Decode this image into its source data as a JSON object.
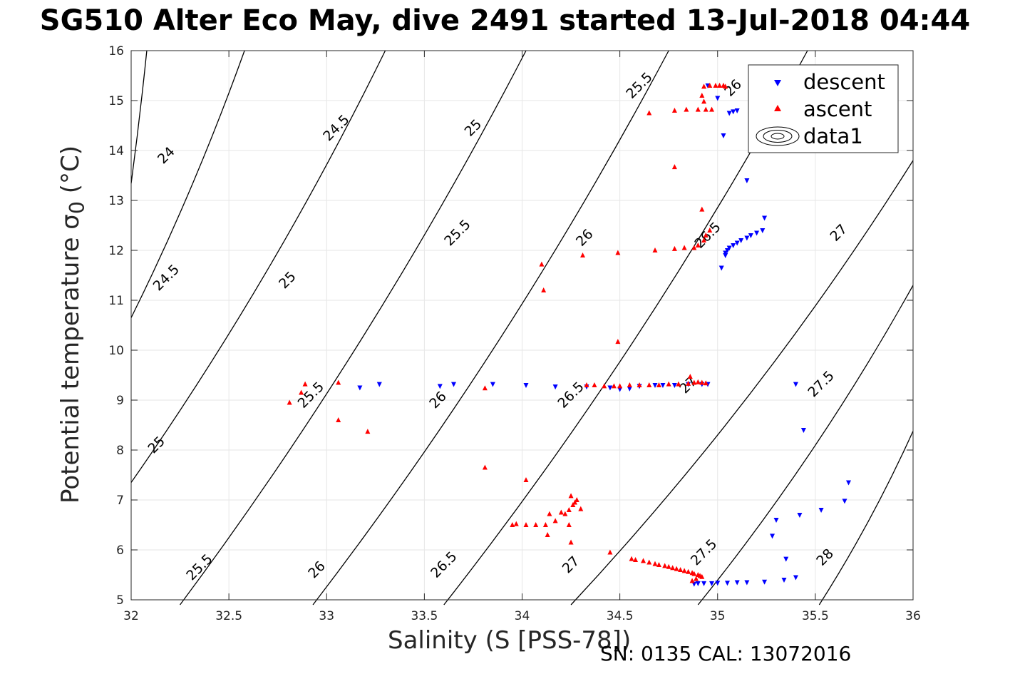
{
  "title": "SG510 Alter Eco May, dive 2491 started 13-Jul-2018 04:44",
  "footer": "SN: 0135  CAL: 13072016",
  "colors": {
    "descent": "#0000ff",
    "ascent": "#ff0000",
    "contour": "#000000",
    "grid": "#e6e6e6"
  },
  "chart_data": {
    "type": "scatter",
    "title": "SG510 Alter Eco May, dive 2491 started 13-Jul-2018 04:44",
    "xlabel": "Salinity (S [PSS-78])",
    "ylabel": "Potential temperature σ",
    "ylabel_sub": "0",
    "ylabel_unit": " (°C)",
    "xlim": [
      32,
      36
    ],
    "ylim": [
      5,
      16
    ],
    "xticks": [
      32,
      32.5,
      33,
      33.5,
      34,
      34.5,
      35,
      35.5,
      36
    ],
    "xticklabels": [
      "32",
      "32.5",
      "33",
      "33.5",
      "34",
      "34.5",
      "35",
      "35.5",
      "36"
    ],
    "yticks": [
      5,
      6,
      7,
      8,
      9,
      10,
      11,
      12,
      13,
      14,
      15,
      16
    ],
    "yticklabels": [
      "5",
      "6",
      "7",
      "8",
      "9",
      "10",
      "11",
      "12",
      "13",
      "14",
      "15",
      "16"
    ],
    "grid": true,
    "legend_position": "top-right",
    "legend": [
      "descent",
      "ascent",
      "data1"
    ],
    "series": [
      {
        "name": "descent",
        "marker": "triangle-down",
        "color": "#0000ff",
        "points": [
          [
            34.95,
            15.3
          ],
          [
            35.0,
            15.05
          ],
          [
            35.06,
            14.75
          ],
          [
            35.08,
            14.78
          ],
          [
            35.1,
            14.8
          ],
          [
            35.03,
            14.3
          ],
          [
            35.15,
            13.4
          ],
          [
            35.24,
            12.65
          ],
          [
            35.23,
            12.4
          ],
          [
            35.2,
            12.35
          ],
          [
            35.17,
            12.3
          ],
          [
            35.15,
            12.25
          ],
          [
            35.12,
            12.2
          ],
          [
            35.1,
            12.15
          ],
          [
            35.08,
            12.1
          ],
          [
            35.06,
            12.05
          ],
          [
            35.05,
            12.0
          ],
          [
            35.04,
            11.95
          ],
          [
            35.04,
            11.9
          ],
          [
            35.02,
            11.65
          ],
          [
            33.17,
            9.25
          ],
          [
            33.27,
            9.32
          ],
          [
            33.58,
            9.28
          ],
          [
            33.65,
            9.32
          ],
          [
            33.85,
            9.32
          ],
          [
            34.02,
            9.3
          ],
          [
            34.17,
            9.27
          ],
          [
            34.33,
            9.27
          ],
          [
            34.45,
            9.25
          ],
          [
            34.5,
            9.22
          ],
          [
            34.55,
            9.23
          ],
          [
            34.6,
            9.28
          ],
          [
            34.68,
            9.3
          ],
          [
            34.72,
            9.3
          ],
          [
            34.78,
            9.3
          ],
          [
            34.85,
            9.32
          ],
          [
            34.92,
            9.32
          ],
          [
            34.95,
            9.32
          ],
          [
            35.4,
            9.32
          ],
          [
            35.44,
            8.4
          ],
          [
            35.67,
            7.35
          ],
          [
            35.65,
            6.98
          ],
          [
            35.53,
            6.8
          ],
          [
            35.42,
            6.7
          ],
          [
            35.3,
            6.6
          ],
          [
            35.28,
            6.28
          ],
          [
            35.35,
            5.82
          ],
          [
            35.4,
            5.45
          ],
          [
            35.34,
            5.4
          ],
          [
            35.24,
            5.36
          ],
          [
            35.15,
            5.35
          ],
          [
            35.1,
            5.35
          ],
          [
            35.05,
            5.34
          ],
          [
            35.0,
            5.34
          ],
          [
            34.97,
            5.33
          ],
          [
            34.93,
            5.33
          ],
          [
            34.9,
            5.33
          ],
          [
            34.88,
            5.32
          ]
        ]
      },
      {
        "name": "ascent",
        "marker": "triangle-up",
        "color": "#ff0000",
        "points": [
          [
            34.93,
            15.28
          ],
          [
            34.96,
            15.3
          ],
          [
            34.99,
            15.3
          ],
          [
            35.01,
            15.3
          ],
          [
            35.03,
            15.3
          ],
          [
            35.04,
            15.28
          ],
          [
            34.92,
            15.1
          ],
          [
            34.93,
            14.98
          ],
          [
            34.9,
            14.82
          ],
          [
            34.94,
            14.82
          ],
          [
            34.97,
            14.82
          ],
          [
            34.84,
            14.82
          ],
          [
            34.78,
            14.8
          ],
          [
            34.65,
            14.75
          ],
          [
            34.78,
            13.67
          ],
          [
            34.92,
            12.82
          ],
          [
            34.96,
            12.4
          ],
          [
            34.94,
            12.3
          ],
          [
            34.93,
            12.2
          ],
          [
            34.9,
            12.1
          ],
          [
            34.88,
            12.05
          ],
          [
            34.83,
            12.05
          ],
          [
            34.78,
            12.03
          ],
          [
            34.68,
            12.0
          ],
          [
            34.49,
            11.95
          ],
          [
            34.31,
            11.9
          ],
          [
            34.1,
            11.72
          ],
          [
            34.11,
            11.2
          ],
          [
            34.49,
            10.17
          ],
          [
            32.81,
            8.95
          ],
          [
            32.87,
            9.15
          ],
          [
            32.89,
            9.32
          ],
          [
            33.06,
            9.35
          ],
          [
            33.06,
            8.6
          ],
          [
            33.21,
            8.37
          ],
          [
            33.81,
            9.24
          ],
          [
            34.33,
            9.3
          ],
          [
            34.37,
            9.3
          ],
          [
            34.42,
            9.28
          ],
          [
            34.47,
            9.28
          ],
          [
            34.5,
            9.28
          ],
          [
            34.55,
            9.3
          ],
          [
            34.6,
            9.3
          ],
          [
            34.65,
            9.3
          ],
          [
            34.7,
            9.3
          ],
          [
            34.75,
            9.32
          ],
          [
            34.8,
            9.32
          ],
          [
            34.85,
            9.33
          ],
          [
            34.88,
            9.35
          ],
          [
            34.9,
            9.36
          ],
          [
            34.92,
            9.35
          ],
          [
            34.94,
            9.34
          ],
          [
            34.86,
            9.47
          ],
          [
            33.81,
            7.65
          ],
          [
            34.02,
            7.4
          ],
          [
            33.95,
            6.5
          ],
          [
            33.97,
            6.52
          ],
          [
            34.02,
            6.5
          ],
          [
            34.07,
            6.5
          ],
          [
            34.12,
            6.5
          ],
          [
            34.13,
            6.3
          ],
          [
            34.14,
            6.72
          ],
          [
            34.17,
            6.58
          ],
          [
            34.2,
            6.75
          ],
          [
            34.22,
            6.72
          ],
          [
            34.24,
            6.8
          ],
          [
            34.25,
            7.08
          ],
          [
            34.27,
            6.95
          ],
          [
            34.26,
            6.9
          ],
          [
            34.28,
            7.0
          ],
          [
            34.3,
            6.82
          ],
          [
            34.24,
            6.5
          ],
          [
            34.25,
            6.15
          ],
          [
            34.45,
            5.95
          ],
          [
            34.56,
            5.82
          ],
          [
            34.58,
            5.8
          ],
          [
            34.62,
            5.78
          ],
          [
            34.65,
            5.75
          ],
          [
            34.68,
            5.72
          ],
          [
            34.7,
            5.7
          ],
          [
            34.73,
            5.68
          ],
          [
            34.75,
            5.66
          ],
          [
            34.77,
            5.64
          ],
          [
            34.79,
            5.62
          ],
          [
            34.81,
            5.6
          ],
          [
            34.83,
            5.58
          ],
          [
            34.85,
            5.56
          ],
          [
            34.87,
            5.54
          ],
          [
            34.88,
            5.52
          ],
          [
            34.9,
            5.5
          ],
          [
            34.91,
            5.48
          ],
          [
            34.92,
            5.46
          ],
          [
            34.89,
            5.42
          ],
          [
            34.87,
            5.38
          ]
        ]
      }
    ],
    "contours": [
      {
        "level": 24,
        "t": [
          16,
          13.34
        ],
        "s": [
          32.08,
          32.0
        ]
      },
      {
        "level": 24.5,
        "t": [
          16,
          10.65
        ],
        "s": [
          32.58,
          32.0
        ]
      },
      {
        "level": 25,
        "t": [
          16,
          7.35
        ],
        "s": [
          33.3,
          32.0
        ]
      },
      {
        "level": 25.5,
        "t": [
          16,
          4.9
        ],
        "s": [
          34.02,
          32.25
        ]
      },
      {
        "level": 26,
        "t": [
          16,
          4.9
        ],
        "s": [
          34.75,
          32.93
        ]
      },
      {
        "level": 26.5,
        "t": [
          16,
          4.9
        ],
        "s": [
          35.46,
          33.6
        ]
      },
      {
        "level": 27,
        "t": [
          13.8,
          4.9
        ],
        "s": [
          36.0,
          34.25
        ]
      },
      {
        "level": 27.5,
        "t": [
          11.3,
          4.9
        ],
        "s": [
          36.0,
          34.9
        ]
      },
      {
        "level": 28,
        "t": [
          8.38,
          4.9
        ],
        "s": [
          36.0,
          35.52
        ]
      }
    ],
    "contour_labels": [
      {
        "text": "24",
        "s": 32.18,
        "t": 13.9
      },
      {
        "text": "24.5",
        "s": 33.05,
        "t": 14.45
      },
      {
        "text": "25",
        "s": 33.75,
        "t": 14.45
      },
      {
        "text": "25.5",
        "s": 34.6,
        "t": 15.3
      },
      {
        "text": "26",
        "s": 35.08,
        "t": 15.25
      },
      {
        "text": "24.5",
        "s": 32.18,
        "t": 11.45
      },
      {
        "text": "25",
        "s": 32.8,
        "t": 11.4
      },
      {
        "text": "25.5",
        "s": 33.67,
        "t": 12.35
      },
      {
        "text": "26",
        "s": 34.32,
        "t": 12.25
      },
      {
        "text": "26.5",
        "s": 34.95,
        "t": 12.3
      },
      {
        "text": "27",
        "s": 35.62,
        "t": 12.35
      },
      {
        "text": "25.5",
        "s": 32.92,
        "t": 9.1
      },
      {
        "text": "26",
        "s": 33.57,
        "t": 9.0
      },
      {
        "text": "26.5",
        "s": 34.25,
        "t": 9.1
      },
      {
        "text": "27",
        "s": 34.85,
        "t": 9.3
      },
      {
        "text": "27.5",
        "s": 35.53,
        "t": 9.32
      },
      {
        "text": "25",
        "s": 32.13,
        "t": 8.1
      },
      {
        "text": "25.5",
        "s": 32.35,
        "t": 5.65
      },
      {
        "text": "26",
        "s": 32.95,
        "t": 5.6
      },
      {
        "text": "26.5",
        "s": 33.6,
        "t": 5.7
      },
      {
        "text": "27",
        "s": 34.25,
        "t": 5.7
      },
      {
        "text": "27.5",
        "s": 34.93,
        "t": 5.95
      },
      {
        "text": "28",
        "s": 35.55,
        "t": 5.85
      }
    ]
  }
}
